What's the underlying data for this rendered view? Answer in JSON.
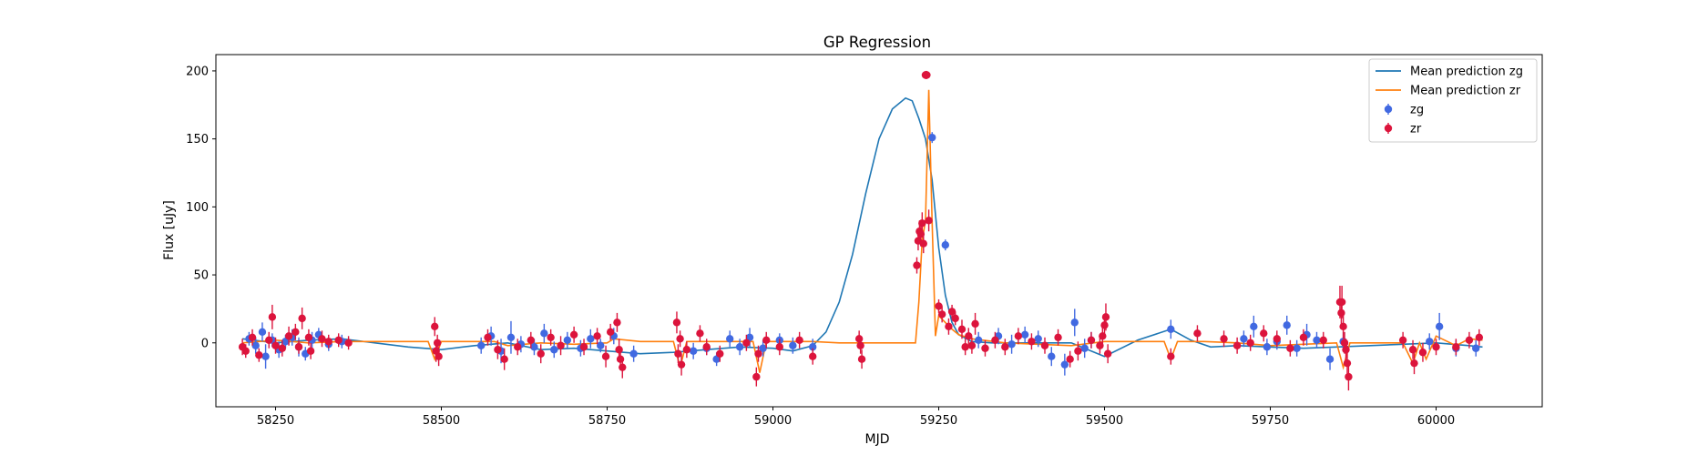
{
  "chart_data": {
    "type": "scatter",
    "title": "GP Regression",
    "xlabel": "MJD",
    "ylabel": "Flux [uJy]",
    "xlim": [
      58160,
      60160
    ],
    "ylim": [
      -47,
      212
    ],
    "xticks": [
      58250,
      58500,
      58750,
      59000,
      59250,
      59500,
      59750,
      60000
    ],
    "yticks": [
      0,
      50,
      100,
      150,
      200
    ],
    "grid": false,
    "legend_position": "top-right",
    "colors": {
      "mean_zg": "#1f77b4",
      "mean_zr": "#ff7f0e",
      "zg": "#4169e1",
      "zr": "#dc143c"
    },
    "legend": [
      {
        "label": "Mean prediction zg",
        "kind": "line",
        "color": "#1f77b4"
      },
      {
        "label": "Mean prediction zr",
        "kind": "line",
        "color": "#ff7f0e"
      },
      {
        "label": "zg",
        "kind": "point",
        "color": "#4169e1"
      },
      {
        "label": "zr",
        "kind": "point",
        "color": "#dc143c"
      }
    ],
    "lines": [
      {
        "name": "Mean prediction zg",
        "color": "#1f77b4",
        "x": [
          58200,
          58250,
          58300,
          58350,
          58400,
          58450,
          58500,
          58550,
          58600,
          58650,
          58700,
          58750,
          58800,
          58850,
          58900,
          58950,
          59000,
          59030,
          59060,
          59080,
          59100,
          59120,
          59140,
          59160,
          59180,
          59200,
          59210,
          59220,
          59230,
          59240,
          59250,
          59260,
          59270,
          59280,
          59300,
          59330,
          59360,
          59400,
          59450,
          59500,
          59550,
          59600,
          59630,
          59660,
          59700,
          59750,
          59800,
          59850,
          59900,
          59950,
          60000,
          60050,
          60070
        ],
        "y": [
          3,
          0,
          2,
          3,
          0,
          -3,
          -5,
          -2,
          0,
          -5,
          -4,
          -6,
          -8,
          -7,
          -5,
          -3,
          -4,
          -6,
          -2,
          8,
          30,
          65,
          110,
          150,
          172,
          180,
          178,
          165,
          150,
          120,
          70,
          35,
          15,
          6,
          1,
          0,
          0,
          0,
          0,
          -10,
          2,
          10,
          2,
          -3,
          -2,
          -3,
          -4,
          -3,
          -2,
          -1,
          0,
          -2,
          -3
        ]
      },
      {
        "name": "Mean prediction zr",
        "color": "#ff7f0e",
        "x": [
          58200,
          58250,
          58300,
          58350,
          58400,
          58450,
          58480,
          58490,
          58500,
          58530,
          58580,
          58600,
          58650,
          58700,
          58750,
          58760,
          58800,
          58850,
          58860,
          58870,
          58900,
          58950,
          58970,
          58980,
          58990,
          59030,
          59060,
          59100,
          59150,
          59200,
          59215,
          59220,
          59225,
          59230,
          59235,
          59240,
          59245,
          59250,
          59260,
          59270,
          59280,
          59300,
          59350,
          59400,
          59450,
          59500,
          59550,
          59590,
          59600,
          59610,
          59650,
          59700,
          59750,
          59800,
          59850,
          59860,
          59870,
          59900,
          59950,
          59965,
          59975,
          59985,
          60000,
          60030,
          60050,
          60070
        ],
        "y": [
          0,
          2,
          0,
          1,
          1,
          1,
          1,
          -12,
          1,
          1,
          1,
          -2,
          0,
          -1,
          0,
          3,
          1,
          1,
          -18,
          1,
          1,
          1,
          1,
          -22,
          1,
          1,
          1,
          0,
          0,
          0,
          0,
          30,
          75,
          90,
          186,
          90,
          5,
          20,
          15,
          10,
          6,
          3,
          0,
          -1,
          -2,
          1,
          1,
          1,
          -12,
          1,
          1,
          0,
          -2,
          -1,
          0,
          -18,
          0,
          0,
          0,
          -15,
          0,
          -12,
          5,
          -2,
          3,
          2
        ]
      }
    ],
    "series": [
      {
        "name": "zg",
        "color": "#4169e1",
        "x": [
          58210,
          58220,
          58230,
          58235,
          58245,
          58255,
          58265,
          58275,
          58285,
          58295,
          58305,
          58315,
          58330,
          58350,
          58560,
          58575,
          58590,
          58605,
          58620,
          58640,
          58655,
          58670,
          58690,
          58710,
          58725,
          58740,
          58760,
          58790,
          58880,
          58900,
          58915,
          58935,
          58950,
          58965,
          58985,
          59010,
          59030,
          59060,
          59240,
          59260,
          59310,
          59340,
          59360,
          59380,
          59400,
          59420,
          59440,
          59455,
          59470,
          59480,
          59600,
          59710,
          59725,
          59745,
          59760,
          59775,
          59790,
          59805,
          59820,
          59840,
          59860,
          59990,
          60005,
          60030,
          60060
        ],
        "y": [
          3,
          -2,
          8,
          -10,
          2,
          -5,
          1,
          4,
          -3,
          -8,
          2,
          6,
          -1,
          1,
          -2,
          5,
          -6,
          4,
          -1,
          -3,
          7,
          -5,
          2,
          -4,
          3,
          -2,
          5,
          -8,
          -6,
          -4,
          -12,
          3,
          -3,
          4,
          -4,
          2,
          -2,
          -3,
          151,
          72,
          2,
          5,
          -1,
          6,
          3,
          -10,
          -16,
          15,
          -4,
          2,
          10,
          3,
          12,
          -3,
          1,
          13,
          -4,
          6,
          2,
          -12,
          1,
          1,
          12,
          -4,
          -4
        ],
        "err": [
          5,
          6,
          7,
          9,
          5,
          6,
          5,
          6,
          7,
          5,
          6,
          5,
          5,
          5,
          6,
          7,
          9,
          12,
          6,
          6,
          7,
          6,
          6,
          6,
          7,
          5,
          6,
          6,
          6,
          5,
          5,
          6,
          6,
          7,
          6,
          5,
          6,
          6,
          4,
          4,
          6,
          6,
          7,
          6,
          6,
          7,
          8,
          10,
          7,
          6,
          7,
          6,
          8,
          6,
          6,
          7,
          6,
          8,
          6,
          8,
          7,
          6,
          10,
          6,
          6
        ]
      },
      {
        "name": "zr",
        "color": "#dc143c",
        "x": [
          58200,
          58205,
          58215,
          58225,
          58240,
          58245,
          58250,
          58260,
          58270,
          58280,
          58285,
          58290,
          58300,
          58303,
          58320,
          58330,
          58345,
          58360,
          58490,
          58492,
          58494,
          58496,
          58570,
          58585,
          58595,
          58615,
          58635,
          58650,
          58665,
          58680,
          58700,
          58715,
          58735,
          58748,
          58755,
          58765,
          58768,
          58770,
          58773,
          58855,
          58857,
          58860,
          58862,
          58870,
          58890,
          58900,
          58920,
          58960,
          58975,
          58978,
          58990,
          59010,
          59040,
          59060,
          59130,
          59132,
          59134,
          59217,
          59219,
          59221,
          59223,
          59225,
          59227,
          59230,
          59232,
          59235,
          59250,
          59255,
          59265,
          59270,
          59275,
          59285,
          59290,
          59295,
          59300,
          59305,
          59320,
          59335,
          59350,
          59370,
          59390,
          59410,
          59430,
          59448,
          59460,
          59480,
          59493,
          59497,
          59500,
          59502,
          59505,
          59600,
          59640,
          59680,
          59700,
          59720,
          59740,
          59760,
          59780,
          59800,
          59830,
          59855,
          59857,
          59858,
          59860,
          59862,
          59864,
          59866,
          59868,
          59950,
          59965,
          59967,
          59980,
          60000,
          60030,
          60050,
          60065
        ],
        "y": [
          -3,
          -6,
          4,
          -9,
          2,
          19,
          -2,
          -4,
          5,
          8,
          -3,
          18,
          4,
          -6,
          3,
          1,
          2,
          0,
          12,
          -6,
          0,
          -10,
          4,
          -5,
          -12,
          -3,
          2,
          -8,
          4,
          -2,
          6,
          -3,
          5,
          -10,
          8,
          15,
          -5,
          -12,
          -18,
          15,
          -8,
          3,
          -16,
          -5,
          7,
          -3,
          -8,
          0,
          -25,
          -8,
          2,
          -3,
          2,
          -10,
          3,
          -2,
          -12,
          57,
          75,
          82,
          80,
          88,
          73,
          197,
          197,
          90,
          27,
          21,
          12,
          23,
          18,
          10,
          -3,
          5,
          -2,
          14,
          -4,
          2,
          -3,
          5,
          1,
          -2,
          4,
          -12,
          -6,
          2,
          -2,
          5,
          13,
          19,
          -8,
          -10,
          7,
          3,
          -2,
          0,
          7,
          3,
          -4,
          4,
          2,
          30,
          22,
          30,
          12,
          0,
          -5,
          -15,
          -25,
          2,
          -5,
          -15,
          -7,
          -3,
          -3,
          2,
          4
        ],
        "err": [
          6,
          5,
          6,
          5,
          6,
          9,
          6,
          6,
          7,
          6,
          5,
          8,
          6,
          6,
          6,
          5,
          5,
          5,
          7,
          8,
          6,
          7,
          6,
          7,
          8,
          6,
          6,
          7,
          6,
          7,
          6,
          6,
          6,
          8,
          6,
          7,
          8,
          7,
          8,
          8,
          7,
          6,
          8,
          6,
          6,
          6,
          6,
          6,
          7,
          6,
          6,
          6,
          6,
          6,
          6,
          6,
          7,
          6,
          7,
          8,
          9,
          8,
          7,
          3,
          3,
          8,
          5,
          6,
          6,
          5,
          5,
          7,
          6,
          6,
          6,
          8,
          6,
          6,
          6,
          6,
          6,
          6,
          6,
          6,
          7,
          6,
          6,
          7,
          8,
          10,
          7,
          6,
          6,
          6,
          6,
          6,
          6,
          6,
          6,
          6,
          6,
          12,
          10,
          12,
          9,
          8,
          8,
          9,
          10,
          6,
          7,
          8,
          7,
          6,
          6,
          6,
          6
        ]
      }
    ]
  }
}
